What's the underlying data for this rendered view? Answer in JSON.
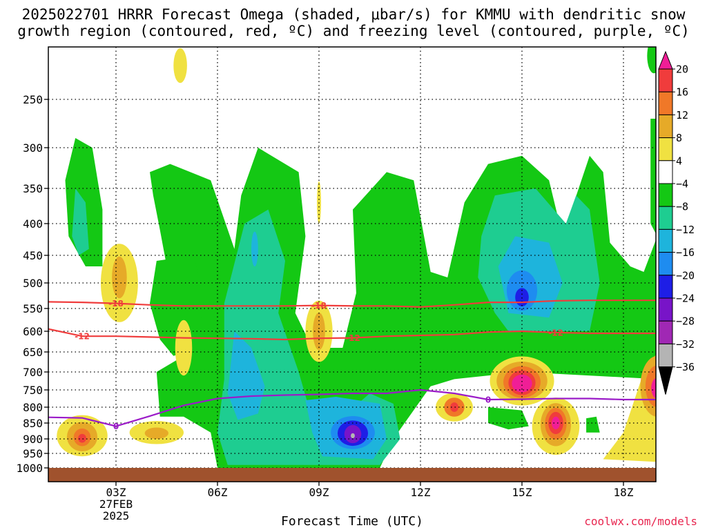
{
  "title_line1": "2025022701 HRRR Forecast Omega (shaded, μbar/s) for KMMU with dendritic snow",
  "title_line2": "growth region (contoured, red, ºC) and freezing level (contoured, purple, ºC)",
  "xlabel": "Forecast Time (UTC)",
  "credit": "coolwx.com/models",
  "chart_data": {
    "type": "heatmap",
    "title": "2025022701 HRRR Forecast Omega (shaded, μbar/s) for KMMU with dendritic snow growth region (contoured, red, ºC) and freezing level (contoured, purple, ºC)",
    "xlabel": "Forecast Time (UTC)",
    "ylabel": "",
    "x_range_hours_after_00Z": [
      1,
      19
    ],
    "y_range_hPa": [
      1025,
      200
    ],
    "x_ticks": [
      {
        "hour": 3,
        "label": "03Z",
        "label2": "27FEB",
        "label3": "2025"
      },
      {
        "hour": 6,
        "label": "06Z"
      },
      {
        "hour": 9,
        "label": "09Z"
      },
      {
        "hour": 12,
        "label": "12Z"
      },
      {
        "hour": 15,
        "label": "15Z"
      },
      {
        "hour": 18,
        "label": "18Z"
      }
    ],
    "y_ticks": [
      250,
      300,
      350,
      400,
      450,
      500,
      550,
      600,
      650,
      700,
      750,
      800,
      850,
      900,
      950,
      1000
    ],
    "colorbar": {
      "levels": [
        20,
        16,
        12,
        8,
        4,
        -4,
        -8,
        -12,
        -16,
        -20,
        -24,
        -28,
        -32,
        -36
      ],
      "colors": [
        "#f01e96",
        "#f03c3c",
        "#f07828",
        "#e6aa28",
        "#f0e141",
        "#ffffff",
        "#14c814",
        "#1ecd91",
        "#1eb4dc",
        "#1e8cf0",
        "#1e1ee6",
        "#7814c8",
        "#a028b4",
        "#b4b4b4",
        "#000000"
      ]
    },
    "omega_regions_description": [
      {
        "center_hour": 10.0,
        "center_hPa": 880,
        "peak_value": -36
      },
      {
        "center_hour": 15.0,
        "center_hPa": 520,
        "peak_value": -24
      },
      {
        "center_hour": 15.0,
        "center_hPa": 730,
        "peak_value": 20
      },
      {
        "center_hour": 16.0,
        "center_hPa": 850,
        "peak_value": 20
      },
      {
        "center_hour": 19.0,
        "center_hPa": 740,
        "peak_value": 20
      },
      {
        "center_hour": 2.0,
        "center_hPa": 895,
        "peak_value": 16
      },
      {
        "center_hour": 13.0,
        "center_hPa": 800,
        "peak_value": 16
      }
    ],
    "contours": [
      {
        "name": "-18",
        "color": "#f03c3c",
        "label_text": "-18",
        "points": [
          [
            1,
            537
          ],
          [
            2,
            538
          ],
          [
            3,
            540
          ],
          [
            4,
            543
          ],
          [
            5,
            545
          ],
          [
            6,
            545
          ],
          [
            7,
            545
          ],
          [
            8,
            545
          ],
          [
            9,
            544
          ],
          [
            10,
            545
          ],
          [
            11,
            545
          ],
          [
            12,
            547
          ],
          [
            13,
            543
          ],
          [
            14,
            538
          ],
          [
            15,
            538
          ],
          [
            16,
            535
          ],
          [
            17,
            534
          ],
          [
            18,
            534
          ],
          [
            19,
            534
          ]
        ],
        "label_hours": [
          3.0,
          9.0
        ]
      },
      {
        "name": "-12",
        "color": "#f03c3c",
        "label_text": "-12",
        "points": [
          [
            1,
            595
          ],
          [
            2,
            612
          ],
          [
            3,
            612
          ],
          [
            4,
            614
          ],
          [
            5,
            616
          ],
          [
            6,
            617
          ],
          [
            7,
            618
          ],
          [
            8,
            620
          ],
          [
            9,
            617
          ],
          [
            10,
            616
          ],
          [
            11,
            612
          ],
          [
            12,
            610
          ],
          [
            13,
            608
          ],
          [
            14,
            602
          ],
          [
            15,
            600
          ],
          [
            16,
            603
          ],
          [
            17,
            605
          ],
          [
            18,
            605
          ],
          [
            19,
            605
          ]
        ],
        "label_hours": [
          2.0,
          10.0,
          16.0
        ]
      },
      {
        "name": "0",
        "color": "#9b1bc8",
        "label_text": "0",
        "points": [
          [
            1,
            832
          ],
          [
            2,
            834
          ],
          [
            3,
            860
          ],
          [
            4,
            828
          ],
          [
            5,
            795
          ],
          [
            6,
            775
          ],
          [
            7,
            768
          ],
          [
            8,
            765
          ],
          [
            9,
            763
          ],
          [
            10,
            760
          ],
          [
            11,
            760
          ],
          [
            12,
            750
          ],
          [
            13,
            760
          ],
          [
            14,
            778
          ],
          [
            15,
            777
          ],
          [
            16,
            775
          ],
          [
            17,
            775
          ],
          [
            18,
            778
          ],
          [
            19,
            778
          ]
        ],
        "label_hours": [
          3.0,
          14.0
        ]
      }
    ],
    "ground": {
      "color": "#a0522d",
      "top_hPa": 1000
    }
  }
}
